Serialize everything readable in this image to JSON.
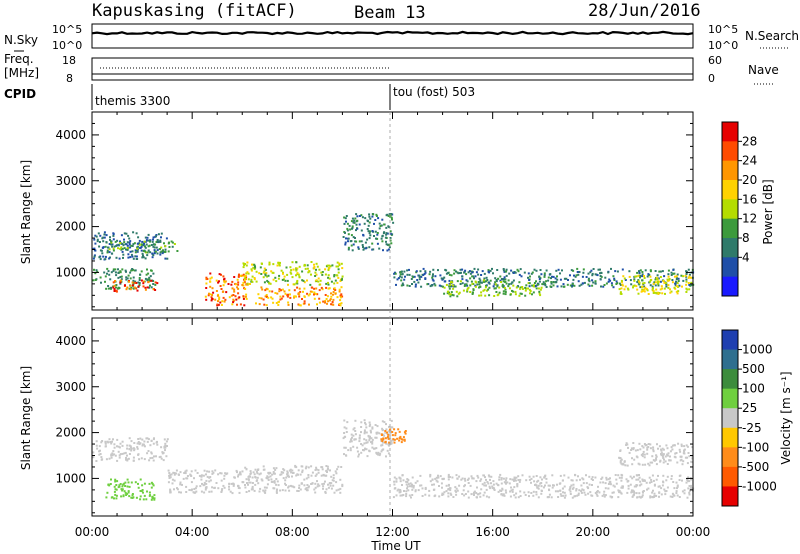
{
  "header": {
    "station": "Kapuskasing (fitACF)",
    "beam": "Beam 13",
    "date": "28/Jun/2016"
  },
  "panels": {
    "nsky": {
      "label": "N.Sky",
      "right_label": "N.Search",
      "y_ticks": [
        "10^5",
        "10^0"
      ],
      "y_ticks_right": [
        "10^5",
        "10^0"
      ]
    },
    "freq": {
      "label_top": "Freq.",
      "label_unit": "[MHz]",
      "right_label": "Nave",
      "y_ticks": [
        "18",
        "8"
      ],
      "y_ticks_right": [
        "60",
        "0"
      ]
    },
    "cpid": {
      "label": "CPID",
      "segments": [
        "themis 3300",
        "tou (fost) 503"
      ]
    }
  },
  "power_colorbar": {
    "title": "Power [dB]",
    "ticks": [
      "28",
      "24",
      "20",
      "16",
      "12",
      "8",
      "4"
    ],
    "colors": [
      "#e60000",
      "#ff4b00",
      "#ff9600",
      "#ffd200",
      "#b4dc00",
      "#3c9a3c",
      "#2f7a6a",
      "#1f4fa8",
      "#1a1aff"
    ]
  },
  "velocity_colorbar": {
    "title": "Velocity [m s⁻¹]",
    "ticks": [
      "1000",
      "500",
      "100",
      "25",
      "-25",
      "-100",
      "-500",
      "-1000"
    ],
    "colors": [
      "#1f3fb0",
      "#2f6f8f",
      "#3c8c3c",
      "#6fcf3f",
      "#c8c8c8",
      "#ffc800",
      "#ff8c1a",
      "#ff5a00",
      "#e60000"
    ]
  },
  "axes": {
    "ylabel": "Slant Range [km]",
    "xlabel": "Time UT",
    "x_ticks": [
      "00:00",
      "04:00",
      "08:00",
      "12:00",
      "16:00",
      "20:00",
      "00:00"
    ],
    "y_ticks": [
      "4000",
      "3000",
      "2000",
      "1000"
    ]
  },
  "chart_data": [
    {
      "type": "heatmap",
      "title": "",
      "xlabel": "",
      "ylabel": "Slant Range [km]",
      "x_range": [
        0,
        24
      ],
      "y_range": [
        180,
        4500
      ],
      "colorbar": "Power [dB]",
      "regions": [
        {
          "t": [
            0.0,
            3.0
          ],
          "r": [
            1300,
            1900
          ],
          "value": 8
        },
        {
          "t": [
            0.5,
            3.5
          ],
          "r": [
            1450,
            1700
          ],
          "value": 14
        },
        {
          "t": [
            0.0,
            2.5
          ],
          "r": [
            650,
            1100
          ],
          "value": 12
        },
        {
          "t": [
            0.8,
            2.6
          ],
          "r": [
            600,
            850
          ],
          "value": 28
        },
        {
          "t": [
            4.5,
            6.2
          ],
          "r": [
            300,
            1000
          ],
          "value": 26
        },
        {
          "t": [
            6.0,
            10.0
          ],
          "r": [
            750,
            1250
          ],
          "value": 18
        },
        {
          "t": [
            6.5,
            10.0
          ],
          "r": [
            300,
            700
          ],
          "value": 24
        },
        {
          "t": [
            10.0,
            12.0
          ],
          "r": [
            1500,
            2300
          ],
          "value": 10
        },
        {
          "t": [
            12.0,
            24.0
          ],
          "r": [
            700,
            1100
          ],
          "value": 10
        },
        {
          "t": [
            14.0,
            18.0
          ],
          "r": [
            500,
            850
          ],
          "value": 16
        },
        {
          "t": [
            21.0,
            24.0
          ],
          "r": [
            550,
            950
          ],
          "value": 20
        }
      ]
    },
    {
      "type": "heatmap",
      "title": "",
      "xlabel": "Time UT",
      "ylabel": "Slant Range [km]",
      "x_range": [
        0,
        24
      ],
      "y_range": [
        180,
        4500
      ],
      "colorbar": "Velocity [m s⁻¹]",
      "regions": [
        {
          "t": [
            0.0,
            3.0
          ],
          "r": [
            1400,
            1900
          ],
          "value": 0
        },
        {
          "t": [
            0.5,
            2.5
          ],
          "r": [
            550,
            1000
          ],
          "value": 80
        },
        {
          "t": [
            3.0,
            6.0
          ],
          "r": [
            700,
            1200
          ],
          "value": 0
        },
        {
          "t": [
            6.0,
            10.0
          ],
          "r": [
            700,
            1300
          ],
          "value": 0
        },
        {
          "t": [
            10.0,
            12.0
          ],
          "r": [
            1500,
            2300
          ],
          "value": 0
        },
        {
          "t": [
            11.5,
            12.5
          ],
          "r": [
            1800,
            2100
          ],
          "value": -200
        },
        {
          "t": [
            12.0,
            24.0
          ],
          "r": [
            600,
            1100
          ],
          "value": 0
        },
        {
          "t": [
            21.0,
            24.0
          ],
          "r": [
            1300,
            1800
          ],
          "value": 0
        }
      ]
    }
  ]
}
